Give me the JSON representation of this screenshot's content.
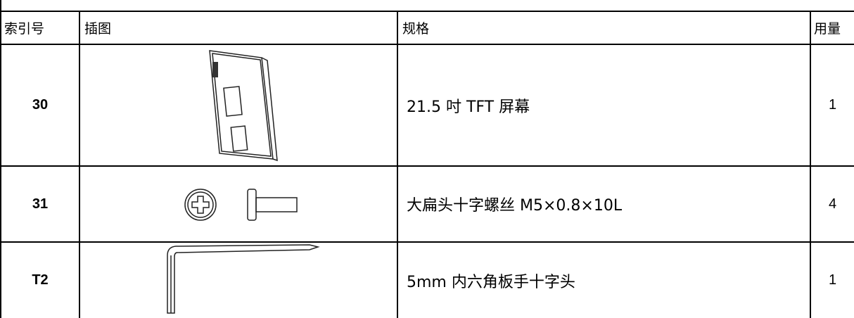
{
  "table": {
    "header": [
      "索引号",
      "插图",
      "规格",
      "用量"
    ],
    "rows": [
      [
        "30",
        "21.5 吋 TFT 屏幕",
        "1"
      ],
      [
        "31",
        "大扁头十字螺丝 M5×0.8×10L",
        "4"
      ],
      [
        "T2",
        "5mm 内六角板手十字头",
        "1"
      ]
    ]
  }
}
